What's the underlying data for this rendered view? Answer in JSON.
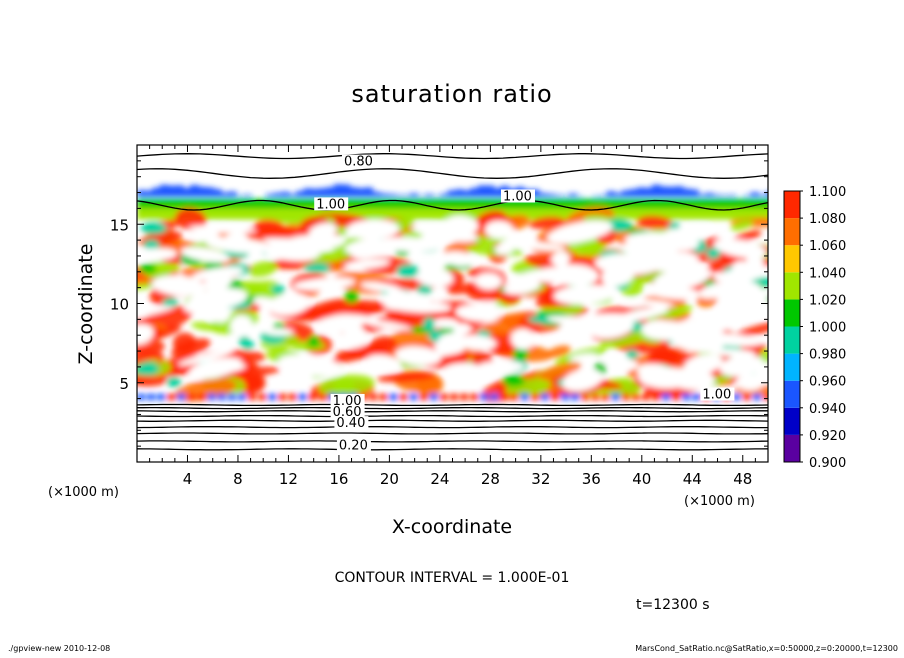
{
  "chart_data": {
    "type": "heatmap",
    "title": "saturation ratio",
    "xlabel": "X-coordinate",
    "ylabel": "Z-coordinate",
    "x_unit": "(×1000 m)",
    "y_unit": "(×1000 m)",
    "xlim": [
      0,
      50
    ],
    "ylim": [
      0,
      20
    ],
    "x_ticks": [
      4,
      8,
      12,
      16,
      20,
      24,
      28,
      32,
      36,
      40,
      44,
      48
    ],
    "y_ticks": [
      5,
      10,
      15
    ],
    "colorbar": {
      "levels": [
        0.9,
        0.92,
        0.94,
        0.96,
        0.98,
        1.0,
        1.02,
        1.04,
        1.06,
        1.08,
        1.1
      ],
      "labels": [
        "0.900",
        "0.920",
        "0.940",
        "0.960",
        "0.980",
        "1.000",
        "1.020",
        "1.040",
        "1.060",
        "1.080",
        "1.100"
      ],
      "colors": [
        "#5a00a0",
        "#0000c8",
        "#1a56ff",
        "#00b4ff",
        "#00d2a0",
        "#00c800",
        "#a0e600",
        "#ffc800",
        "#ff6e00",
        "#ff2800",
        "#ff8c8c"
      ]
    },
    "contour_interval": "CONTOUR INTERVAL = 1.000E-01",
    "contour_labels": [
      {
        "text": "0.80",
        "x": 16.4,
        "y": 18.7
      },
      {
        "text": "1.00",
        "x": 14.2,
        "y": 16.0
      },
      {
        "text": "1.00",
        "x": 29.0,
        "y": 16.5
      },
      {
        "text": "1.00",
        "x": 15.5,
        "y": 3.6
      },
      {
        "text": "0.60",
        "x": 15.5,
        "y": 2.9
      },
      {
        "text": "0.40",
        "x": 15.8,
        "y": 2.2
      },
      {
        "text": "0.20",
        "x": 16.0,
        "y": 0.8
      },
      {
        "text": "1.00",
        "x": 44.8,
        "y": 4.0
      }
    ]
  },
  "time_label": "t=12300 s",
  "footer_left": "./gpview-new   2010-12-08",
  "footer_right": "MarsCond_SatRatio.nc@SatRatio,x=0:50000,z=0:20000,t=12300"
}
